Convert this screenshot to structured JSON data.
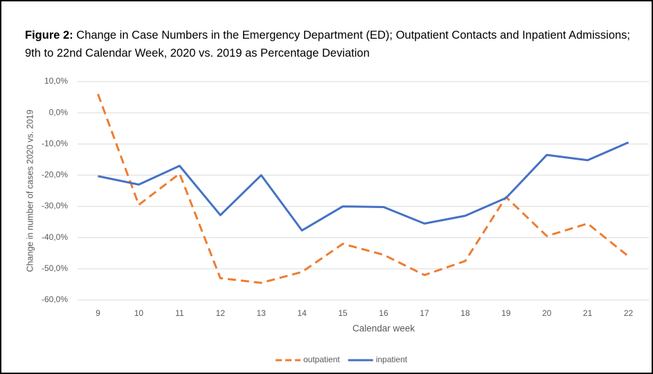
{
  "chart_data": {
    "type": "line",
    "title_label": "Figure 2:",
    "title": "Change in Case Numbers in the Emergency Department (ED); Outpatient Contacts and Inpatient Admissions; 9th to 22nd Calendar Week, 2020 vs. 2019 as Percentage Deviation",
    "x_label": "Calendar week",
    "y_label": "Change in number of cases 2020 vs. 2019",
    "categories": [
      "9",
      "10",
      "11",
      "12",
      "13",
      "14",
      "15",
      "16",
      "17",
      "18",
      "19",
      "20",
      "21",
      "22"
    ],
    "series": [
      {
        "name": "outpatient",
        "color": "#ed7d31",
        "dashed": true,
        "values": [
          6,
          -29.5,
          -19.5,
          -53,
          -54.5,
          -51,
          -42,
          -45.5,
          -52,
          -47.5,
          -27,
          -39.5,
          -35.5,
          -46
        ]
      },
      {
        "name": "inpatient",
        "color": "#4472c4",
        "dashed": false,
        "values": [
          -20.3,
          -23,
          -17,
          -32.8,
          -20,
          -37.7,
          -30,
          -30.2,
          -35.5,
          -33,
          -27.3,
          -13.5,
          -15.2,
          -9.5
        ]
      }
    ],
    "ylim": [
      -60,
      10
    ],
    "yticks": [
      {
        "value": 10,
        "label": "10,0%"
      },
      {
        "value": 0,
        "label": "0,0%"
      },
      {
        "value": -10,
        "label": "-10,0%"
      },
      {
        "value": -20,
        "label": "-20,0%"
      },
      {
        "value": -30,
        "label": "-30,0%"
      },
      {
        "value": -40,
        "label": "-40,0%"
      },
      {
        "value": -50,
        "label": "-50,0%"
      },
      {
        "value": -60,
        "label": "-60,0%"
      }
    ],
    "grid": true,
    "legend": "bottom"
  }
}
